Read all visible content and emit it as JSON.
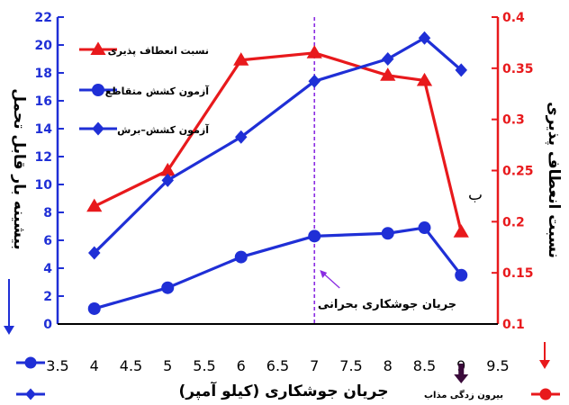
{
  "chart_data": {
    "type": "line",
    "xlabel": "جریان جوشکاری (کیلو آمپر)",
    "ylabel_left": "بیشینه بار قابل تحمل",
    "ylabel_right": "نسبت انعطاف پذیری",
    "xlim": [
      3.5,
      9.5
    ],
    "x_ticks": [
      "3.5",
      "4",
      "4.5",
      "5",
      "5.5",
      "6",
      "6.5",
      "7",
      "7.5",
      "8",
      "8.5",
      "9",
      "9.5"
    ],
    "ylim_left": [
      0,
      22
    ],
    "y_left_ticks": [
      "0",
      "2",
      "4",
      "6",
      "8",
      "10",
      "12",
      "14",
      "16",
      "18",
      "20",
      "22"
    ],
    "ylim_right": [
      0.1,
      0.4
    ],
    "y_right_ticks": [
      "0.1",
      "0.15",
      "0.2",
      "0.25",
      "0.3",
      "0.35",
      "0.4"
    ],
    "legend_position": "top-left",
    "colors": {
      "red": "#e8191c",
      "blue": "#1f2fd6",
      "purple": "#8a2be2",
      "black": "#000000"
    },
    "series": [
      {
        "name": "نسبت انعطاف پذیری",
        "axis": "right",
        "marker": "triangle",
        "color": "#e8191c",
        "x": [
          4,
          5,
          6,
          7,
          8,
          8.5,
          9
        ],
        "values": [
          0.215,
          0.25,
          0.358,
          0.365,
          0.343,
          0.338,
          0.19
        ]
      },
      {
        "name": "آزمون کشش متقاطع",
        "axis": "left",
        "marker": "circle",
        "color": "#1f2fd6",
        "x": [
          4,
          5,
          6,
          7,
          8,
          8.5,
          9
        ],
        "values": [
          1.1,
          2.6,
          4.8,
          6.3,
          6.5,
          6.9,
          3.5
        ]
      },
      {
        "name": "آزمون کشش–برش",
        "axis": "left",
        "marker": "diamond",
        "color": "#1f2fd6",
        "x": [
          4,
          5,
          6,
          7,
          8,
          8.5,
          9
        ],
        "values": [
          5.1,
          10.3,
          13.4,
          17.4,
          19.0,
          20.5,
          18.2
        ]
      }
    ],
    "annotations": {
      "critical_line_x": 7,
      "critical_label": "جریان جوشکاری بحرانی",
      "expulsion_label": "بیرون زدگی مذاب",
      "expulsion_x": 9,
      "panel_label": "ب"
    }
  }
}
